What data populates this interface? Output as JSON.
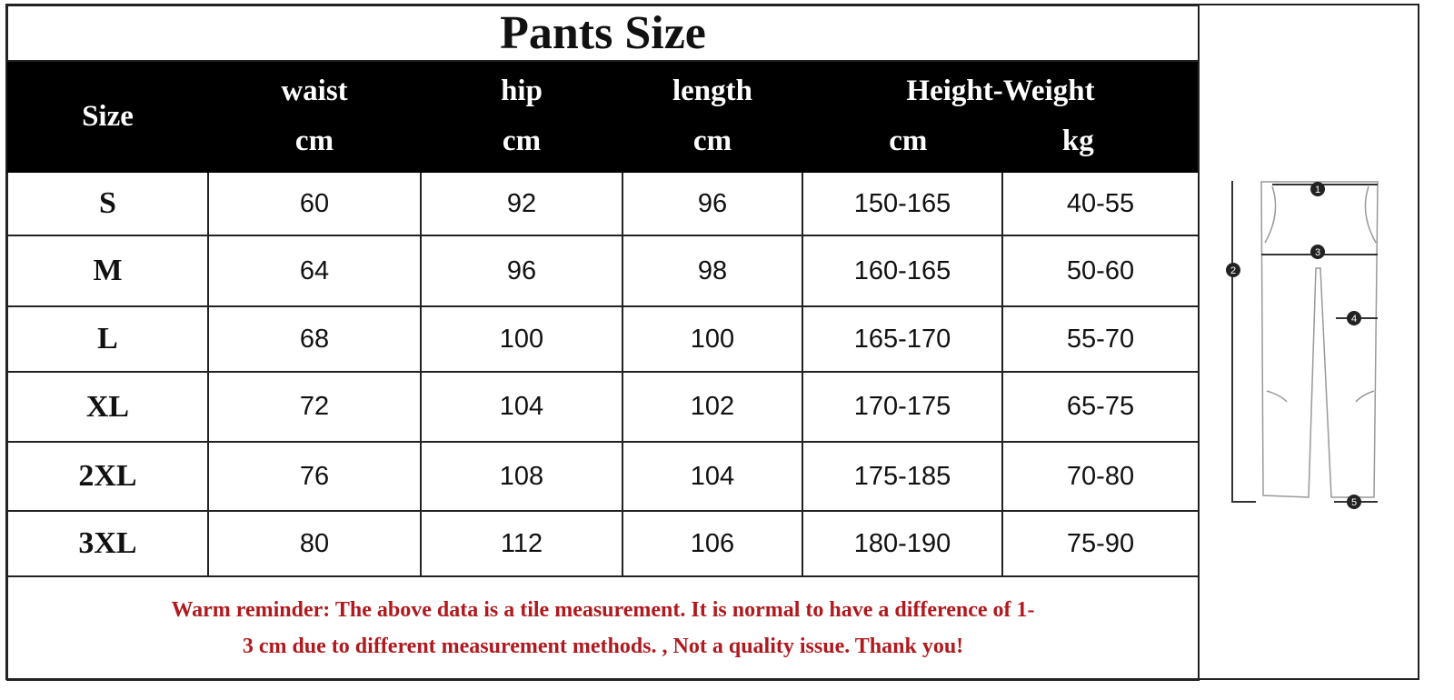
{
  "title": "Pants Size",
  "header": {
    "size": "Size",
    "columns": [
      {
        "label": "waist",
        "unit": "cm"
      },
      {
        "label": "hip",
        "unit": "cm"
      },
      {
        "label": "length",
        "unit": "cm"
      }
    ],
    "height_weight": {
      "label": "Height-Weight",
      "units": [
        "cm",
        "kg"
      ]
    }
  },
  "rows": [
    {
      "size": "S",
      "waist": "60",
      "hip": "92",
      "length": "96",
      "height": "150-165",
      "weight": "40-55"
    },
    {
      "size": "M",
      "waist": "64",
      "hip": "96",
      "length": "98",
      "height": "160-165",
      "weight": "50-60"
    },
    {
      "size": "L",
      "waist": "68",
      "hip": "100",
      "length": "100",
      "height": "165-170",
      "weight": "55-70"
    },
    {
      "size": "XL",
      "waist": "72",
      "hip": "104",
      "length": "102",
      "height": "170-175",
      "weight": "65-75"
    },
    {
      "size": "2XL",
      "waist": "76",
      "hip": "108",
      "length": "104",
      "height": "175-185",
      "weight": "70-80"
    },
    {
      "size": "3XL",
      "waist": "80",
      "hip": "112",
      "length": "106",
      "height": "180-190",
      "weight": "75-90"
    }
  ],
  "reminder": {
    "line1": "Warm reminder: The above data is a tile measurement. It is normal to have a difference of 1-",
    "line2": "3 cm due to different measurement methods. , Not a quality issue. Thank you!",
    "color": "#b0191e"
  },
  "diagram": {
    "markers": [
      "1",
      "2",
      "3",
      "4",
      "5"
    ]
  }
}
